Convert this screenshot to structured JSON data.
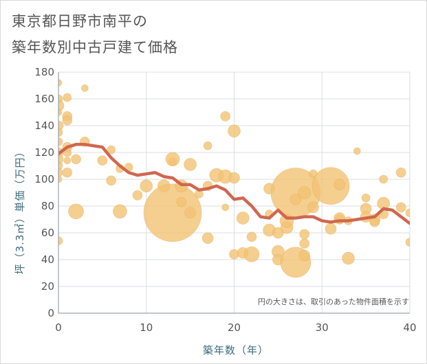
{
  "title_line1": "東京都日野市南平の",
  "title_line2": "築年数別中古戸建て価格",
  "note": "円の大きさは、取引のあった物件面積を示す",
  "chart_data": {
    "type": "scatter",
    "xlabel": "築年数（年）",
    "ylabel": "坪（3.3㎡）単価（万円）",
    "xlim": [
      0,
      40
    ],
    "ylim": [
      0,
      180
    ],
    "x_ticks": [
      "0",
      "10",
      "20",
      "30",
      "40"
    ],
    "y_ticks": [
      "0",
      "20",
      "40",
      "60",
      "80",
      "100",
      "120",
      "140",
      "160",
      "180"
    ],
    "grid": true,
    "colors": {
      "bubble": "#f2c171",
      "trend": "#d0674f",
      "grid": "#d9dee3",
      "axis_label": "#3d6b7f"
    },
    "trend_line": {
      "x": [
        0,
        1,
        2,
        3,
        4,
        5,
        6,
        7,
        8,
        9,
        10,
        11,
        12,
        13,
        14,
        15,
        16,
        17,
        18,
        19,
        20,
        21,
        22,
        23,
        24,
        25,
        26,
        27,
        28,
        29,
        30,
        31,
        32,
        33,
        34,
        35,
        36,
        37,
        38,
        39,
        40
      ],
      "y": [
        119,
        124,
        126,
        126,
        125,
        124,
        116,
        110,
        105,
        103,
        104,
        105,
        102,
        101,
        96,
        96,
        92,
        93,
        95,
        92,
        85,
        86,
        80,
        72,
        71,
        77,
        71,
        71,
        72,
        72,
        69,
        68,
        69,
        69,
        70,
        71,
        72,
        78,
        77,
        72,
        67
      ]
    },
    "bubbles": [
      {
        "x": 0,
        "y": 172,
        "r": 5
      },
      {
        "x": 0,
        "y": 160,
        "r": 6
      },
      {
        "x": 0,
        "y": 155,
        "r": 8
      },
      {
        "x": 0,
        "y": 150,
        "r": 5
      },
      {
        "x": 0,
        "y": 140,
        "r": 7
      },
      {
        "x": 0,
        "y": 135,
        "r": 6
      },
      {
        "x": 0,
        "y": 128,
        "r": 6
      },
      {
        "x": 0,
        "y": 120,
        "r": 7
      },
      {
        "x": 0,
        "y": 115,
        "r": 7
      },
      {
        "x": 0,
        "y": 110,
        "r": 6
      },
      {
        "x": 0,
        "y": 105,
        "r": 6
      },
      {
        "x": 0,
        "y": 100,
        "r": 5
      },
      {
        "x": 0,
        "y": 54,
        "r": 6
      },
      {
        "x": 1,
        "y": 161,
        "r": 6
      },
      {
        "x": 1,
        "y": 147,
        "r": 7
      },
      {
        "x": 1,
        "y": 144,
        "r": 7
      },
      {
        "x": 1,
        "y": 124,
        "r": 7
      },
      {
        "x": 1,
        "y": 120,
        "r": 6
      },
      {
        "x": 1,
        "y": 114,
        "r": 5
      },
      {
        "x": 1,
        "y": 105,
        "r": 7
      },
      {
        "x": 2,
        "y": 115,
        "r": 7
      },
      {
        "x": 2,
        "y": 76,
        "r": 11
      },
      {
        "x": 3,
        "y": 168,
        "r": 5
      },
      {
        "x": 3,
        "y": 128,
        "r": 7
      },
      {
        "x": 5,
        "y": 114,
        "r": 7
      },
      {
        "x": 6,
        "y": 122,
        "r": 6
      },
      {
        "x": 6,
        "y": 99,
        "r": 7
      },
      {
        "x": 7,
        "y": 108,
        "r": 6
      },
      {
        "x": 7,
        "y": 76,
        "r": 10
      },
      {
        "x": 8,
        "y": 109,
        "r": 6
      },
      {
        "x": 9,
        "y": 88,
        "r": 7
      },
      {
        "x": 10,
        "y": 95,
        "r": 9
      },
      {
        "x": 12,
        "y": 95,
        "r": 9
      },
      {
        "x": 13,
        "y": 75,
        "r": 42
      },
      {
        "x": 13,
        "y": 113,
        "r": 6
      },
      {
        "x": 13,
        "y": 115,
        "r": 10
      },
      {
        "x": 14,
        "y": 95,
        "r": 9
      },
      {
        "x": 14,
        "y": 83,
        "r": 7
      },
      {
        "x": 15,
        "y": 111,
        "r": 9
      },
      {
        "x": 15,
        "y": 75,
        "r": 8
      },
      {
        "x": 16,
        "y": 89,
        "r": 6
      },
      {
        "x": 17,
        "y": 125,
        "r": 6
      },
      {
        "x": 17,
        "y": 95,
        "r": 7
      },
      {
        "x": 17,
        "y": 56,
        "r": 8
      },
      {
        "x": 18,
        "y": 103,
        "r": 10
      },
      {
        "x": 19,
        "y": 147,
        "r": 7
      },
      {
        "x": 19,
        "y": 102,
        "r": 10
      },
      {
        "x": 19,
        "y": 79,
        "r": 5
      },
      {
        "x": 20,
        "y": 136,
        "r": 9
      },
      {
        "x": 20,
        "y": 101,
        "r": 8
      },
      {
        "x": 20,
        "y": 44,
        "r": 7
      },
      {
        "x": 21,
        "y": 71,
        "r": 9
      },
      {
        "x": 21,
        "y": 45,
        "r": 8
      },
      {
        "x": 22,
        "y": 57,
        "r": 7
      },
      {
        "x": 22,
        "y": 44,
        "r": 11
      },
      {
        "x": 24,
        "y": 93,
        "r": 8
      },
      {
        "x": 24,
        "y": 74,
        "r": 6
      },
      {
        "x": 24,
        "y": 62,
        "r": 9
      },
      {
        "x": 25,
        "y": 60,
        "r": 8
      },
      {
        "x": 25,
        "y": 46,
        "r": 9
      },
      {
        "x": 25,
        "y": 40,
        "r": 8
      },
      {
        "x": 26,
        "y": 64,
        "r": 9
      },
      {
        "x": 26,
        "y": 69,
        "r": 10
      },
      {
        "x": 27,
        "y": 90,
        "r": 36
      },
      {
        "x": 27,
        "y": 38,
        "r": 22
      },
      {
        "x": 27,
        "y": 85,
        "r": 8
      },
      {
        "x": 28,
        "y": 90,
        "r": 9
      },
      {
        "x": 28,
        "y": 59,
        "r": 7
      },
      {
        "x": 28,
        "y": 52,
        "r": 7
      },
      {
        "x": 28,
        "y": 43,
        "r": 8
      },
      {
        "x": 29,
        "y": 104,
        "r": 6
      },
      {
        "x": 29,
        "y": 79,
        "r": 8
      },
      {
        "x": 31,
        "y": 95,
        "r": 27
      },
      {
        "x": 31,
        "y": 63,
        "r": 8
      },
      {
        "x": 32,
        "y": 96,
        "r": 8
      },
      {
        "x": 32,
        "y": 70,
        "r": 7
      },
      {
        "x": 32,
        "y": 71,
        "r": 8
      },
      {
        "x": 33,
        "y": 41,
        "r": 9
      },
      {
        "x": 33,
        "y": 69,
        "r": 6
      },
      {
        "x": 34,
        "y": 121,
        "r": 5
      },
      {
        "x": 35,
        "y": 86,
        "r": 6
      },
      {
        "x": 35,
        "y": 78,
        "r": 8
      },
      {
        "x": 35,
        "y": 72,
        "r": 8
      },
      {
        "x": 36,
        "y": 68,
        "r": 7
      },
      {
        "x": 36,
        "y": 70,
        "r": 8
      },
      {
        "x": 37,
        "y": 100,
        "r": 6
      },
      {
        "x": 37,
        "y": 82,
        "r": 9
      },
      {
        "x": 37,
        "y": 74,
        "r": 7
      },
      {
        "x": 39,
        "y": 105,
        "r": 7
      },
      {
        "x": 39,
        "y": 79,
        "r": 7
      },
      {
        "x": 40,
        "y": 75,
        "r": 6
      },
      {
        "x": 40,
        "y": 53,
        "r": 6
      }
    ]
  }
}
